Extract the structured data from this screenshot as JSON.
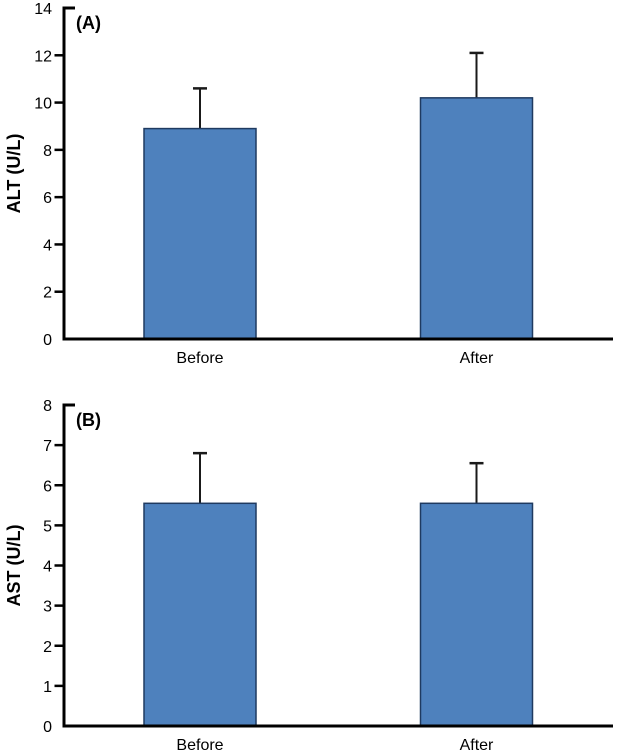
{
  "figure": {
    "background": "#ffffff",
    "bar_fill": "#4E81BD",
    "bar_border": "#1F3A60",
    "axis_color": "#000000",
    "error_color": "#1a1a1a"
  },
  "chart_data": [
    {
      "type": "bar",
      "panel_label": "(A)",
      "title": "",
      "xlabel": "",
      "ylabel": "ALT (U/L)",
      "categories": [
        "Before",
        "After"
      ],
      "values": [
        8.9,
        10.2
      ],
      "error_plus": [
        1.7,
        1.9
      ],
      "ylim": [
        0,
        14
      ],
      "ytick_step": 2,
      "yticks": [
        0,
        2,
        4,
        6,
        8,
        10,
        12,
        14
      ],
      "grid": false,
      "legend_position": "none"
    },
    {
      "type": "bar",
      "panel_label": "(B)",
      "title": "",
      "xlabel": "",
      "ylabel": "AST (U/L)",
      "categories": [
        "Before",
        "After"
      ],
      "values": [
        5.55,
        5.55
      ],
      "error_plus": [
        1.25,
        1.0
      ],
      "ylim": [
        0,
        8
      ],
      "ytick_step": 1,
      "yticks": [
        0,
        1,
        2,
        3,
        4,
        5,
        6,
        7,
        8
      ],
      "grid": false,
      "legend_position": "none"
    }
  ]
}
